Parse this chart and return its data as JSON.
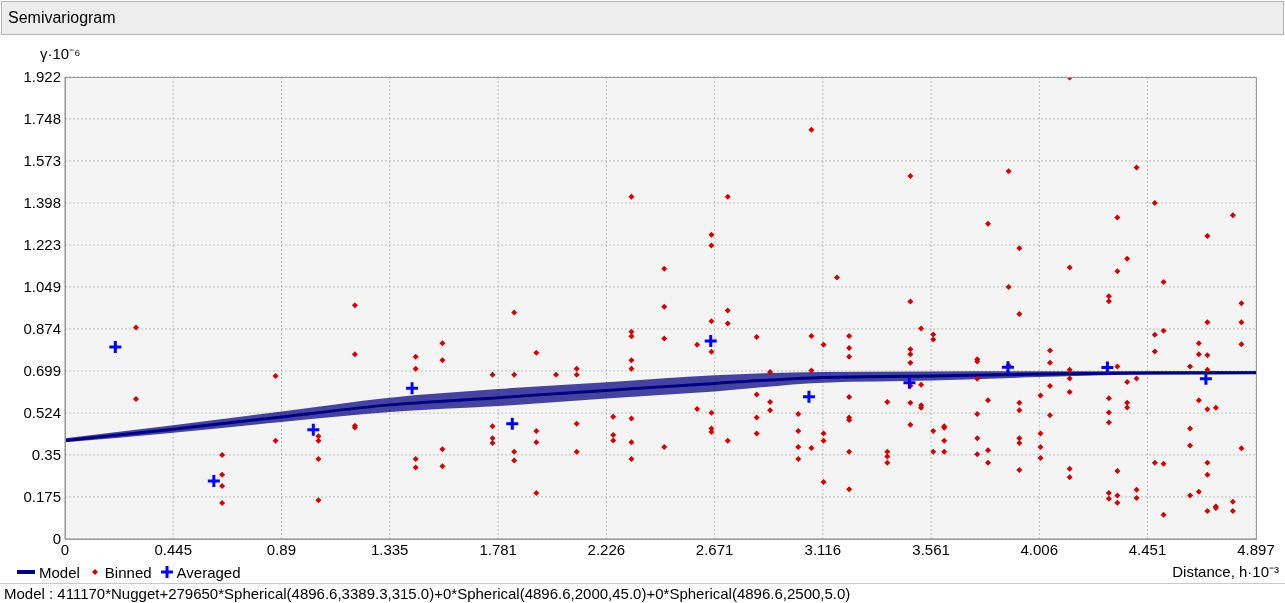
{
  "chart_data": {
    "type": "scatter",
    "title": "Semivariogram",
    "xlabel": "Distance, h·10⁻³",
    "ylabel": "γ·10⁻⁶",
    "annotations": [
      "Model : 411170*Nugget+279650*Spherical(4896.6,3389.3,315.0)+0*Spherical(4896.6,2000,45.0)+0*Spherical(4896.6,2500,5.0)"
    ],
    "xlim": [
      0,
      4.897
    ],
    "ylim": [
      0,
      1.922
    ],
    "xticks": [
      0,
      0.445,
      0.89,
      1.335,
      1.781,
      2.226,
      2.671,
      3.116,
      3.561,
      4.006,
      4.451,
      4.897
    ],
    "yticks": [
      0,
      0.175,
      0.35,
      0.524,
      0.699,
      0.874,
      1.049,
      1.223,
      1.398,
      1.573,
      1.748,
      1.922
    ],
    "grid": true,
    "legend": "bottom left",
    "series": [
      {
        "name": "Model",
        "type": "line",
        "color": "#000080",
        "marker": "none",
        "x": [
          0,
          0.445,
          0.89,
          1.335,
          1.781,
          2.226,
          2.671,
          3.116,
          3.561,
          4.006,
          4.451,
          4.897
        ],
        "values": [
          0.41,
          0.457,
          0.508,
          0.558,
          0.588,
          0.618,
          0.647,
          0.672,
          0.678,
          0.686,
          0.691,
          0.692
        ],
        "lower": [
          0.402,
          0.442,
          0.487,
          0.528,
          0.553,
          0.585,
          0.614,
          0.65,
          0.659,
          0.674,
          0.684,
          0.686
        ],
        "upper": [
          0.419,
          0.473,
          0.53,
          0.588,
          0.624,
          0.652,
          0.681,
          0.695,
          0.697,
          0.698,
          0.698,
          0.698
        ]
      },
      {
        "name": "Binned",
        "color": "#d00000",
        "marker": "diamond",
        "x": [
          0.292,
          0.292,
          0.646,
          0.646,
          0.646,
          0.646,
          0.866,
          0.866,
          1.042,
          1.042,
          1.042,
          1.042,
          1.192,
          1.192,
          1.192,
          1.192,
          1.442,
          1.442,
          1.442,
          1.442,
          1.552,
          1.552,
          1.552,
          1.552,
          1.758,
          1.758,
          1.758,
          1.758,
          1.847,
          1.847,
          1.847,
          1.847,
          1.938,
          1.938,
          1.938,
          1.938,
          2.019,
          2.104,
          2.104,
          2.104,
          2.104,
          2.254,
          2.254,
          2.254,
          2.329,
          2.329,
          2.329,
          2.329,
          2.329,
          2.329,
          2.329,
          2.329,
          2.464,
          2.464,
          2.464,
          2.464,
          2.599,
          2.599,
          2.658,
          2.658,
          2.658,
          2.658,
          2.658,
          2.658,
          2.658,
          2.725,
          2.725,
          2.725,
          2.725,
          2.844,
          2.844,
          2.844,
          2.844,
          2.899,
          2.899,
          2.899,
          3.015,
          3.015,
          3.015,
          3.015,
          3.069,
          3.069,
          3.069,
          3.069,
          3.119,
          3.119,
          3.119,
          3.119,
          3.174,
          3.224,
          3.224,
          3.224,
          3.224,
          3.224,
          3.224,
          3.224,
          3.224,
          3.381,
          3.381,
          3.381,
          3.381,
          3.476,
          3.476,
          3.476,
          3.476,
          3.476,
          3.476,
          3.476,
          3.476,
          3.52,
          3.52,
          3.52,
          3.52,
          3.57,
          3.57,
          3.57,
          3.57,
          3.615,
          3.615,
          3.615,
          3.615,
          3.751,
          3.751,
          3.751,
          3.751,
          3.751,
          3.751,
          3.795,
          3.795,
          3.795,
          3.795,
          3.88,
          3.88,
          3.88,
          3.924,
          3.924,
          3.924,
          3.924,
          3.924,
          3.924,
          3.924,
          4.011,
          4.011,
          4.011,
          4.011,
          4.05,
          4.05,
          4.05,
          4.05,
          4.131,
          4.131,
          4.131,
          4.131,
          4.131,
          4.131,
          4.131,
          4.292,
          4.292,
          4.292,
          4.292,
          4.292,
          4.292,
          4.292,
          4.327,
          4.327,
          4.327,
          4.327,
          4.327,
          4.327,
          4.367,
          4.367,
          4.367,
          4.367,
          4.406,
          4.406,
          4.406,
          4.406,
          4.481,
          4.481,
          4.481,
          4.481,
          4.517,
          4.517,
          4.517,
          4.517,
          4.626,
          4.626,
          4.626,
          4.626,
          4.662,
          4.662,
          4.662,
          4.662,
          4.697,
          4.697,
          4.697,
          4.697,
          4.697,
          4.697,
          4.697,
          4.697,
          4.732,
          4.732,
          4.732,
          4.802,
          4.802,
          4.802,
          4.837,
          4.837,
          4.837,
          4.837
        ],
        "values": [
          0.88,
          0.582,
          0.349,
          0.267,
          0.221,
          0.15,
          0.678,
          0.409,
          0.427,
          0.409,
          0.333,
          0.161,
          0.972,
          0.769,
          0.471,
          0.464,
          0.758,
          0.708,
          0.333,
          0.297,
          0.814,
          0.744,
          0.373,
          0.303,
          0.683,
          0.469,
          0.419,
          0.399,
          0.942,
          0.683,
          0.363,
          0.327,
          0.775,
          0.449,
          0.403,
          0.191,
          0.683,
          0.708,
          0.683,
          0.479,
          0.363,
          0.509,
          0.433,
          0.41,
          1.424,
          0.862,
          0.843,
          0.744,
          0.708,
          0.501,
          0.403,
          0.333,
          1.124,
          0.966,
          0.834,
          0.383,
          0.808,
          0.541,
          1.266,
          1.221,
          0.906,
          0.779,
          0.525,
          0.46,
          0.445,
          1.424,
          0.951,
          0.896,
          0.409,
          0.84,
          0.601,
          0.505,
          0.439,
          0.695,
          0.57,
          0.536,
          0.52,
          0.449,
          0.383,
          0.333,
          1.703,
          0.845,
          0.701,
          0.379,
          0.808,
          0.439,
          0.409,
          0.237,
          1.088,
          0.845,
          0.795,
          0.758,
          0.591,
          0.505,
          0.495,
          0.363,
          0.207,
          0.57,
          0.363,
          0.343,
          0.317,
          1.51,
          0.988,
          0.789,
          0.769,
          0.733,
          0.638,
          0.567,
          0.475,
          0.876,
          0.642,
          0.556,
          0.546,
          0.851,
          0.83,
          0.449,
          0.363,
          0.469,
          0.463,
          0.409,
          0.363,
          0.748,
          0.738,
          0.667,
          0.52,
          0.419,
          0.353,
          1.311,
          0.577,
          0.369,
          0.317,
          1.53,
          1.048,
          0.723,
          1.21,
          0.936,
          0.567,
          0.536,
          0.419,
          0.399,
          0.287,
          0.597,
          0.439,
          0.383,
          0.337,
          0.784,
          0.733,
          0.637,
          0.515,
          1.92,
          1.13,
          0.704,
          0.668,
          0.612,
          0.292,
          0.257,
          1.01,
          0.989,
          0.586,
          0.526,
          0.485,
          0.191,
          0.167,
          1.337,
          1.114,
          0.718,
          0.283,
          0.181,
          0.151,
          1.166,
          0.653,
          0.567,
          0.547,
          1.545,
          0.668,
          0.205,
          0.171,
          1.398,
          0.85,
          0.78,
          0.317,
          1.069,
          0.866,
          0.313,
          0.101,
          0.718,
          0.46,
          0.389,
          0.181,
          0.814,
          0.769,
          0.577,
          0.197,
          1.261,
          0.902,
          0.764,
          0.704,
          0.54,
          0.317,
          0.267,
          0.116,
          0.546,
          0.135,
          0.129,
          1.347,
          0.155,
          0.116,
          0.981,
          0.902,
          0.81,
          0.378
        ]
      },
      {
        "name": "Averaged",
        "color": "#0000ff",
        "marker": "cross",
        "x": [
          0.207,
          0.612,
          1.021,
          1.427,
          1.839,
          2.655,
          3.059,
          3.472,
          3.877,
          4.286,
          4.691
        ],
        "values": [
          0.799,
          0.241,
          0.455,
          0.627,
          0.479,
          0.824,
          0.592,
          0.65,
          0.714,
          0.713,
          0.667
        ]
      }
    ]
  }
}
